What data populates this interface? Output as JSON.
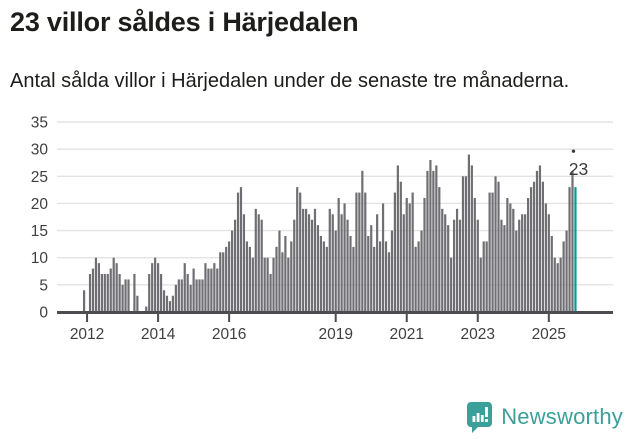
{
  "header": {
    "title": "23 villor såldes i Härjedalen",
    "subtitle": "Antal sålda villor i Härjedalen under de senaste tre månaderna."
  },
  "chart_data": {
    "type": "bar",
    "title": "23 villor såldes i Härjedalen",
    "subtitle": "Antal sålda villor i Härjedalen under de senaste tre månaderna.",
    "xlabel": "",
    "ylabel": "",
    "x_unit": "month",
    "x_start": "2011-12",
    "x_end": "2025-10",
    "ylim": [
      0,
      35
    ],
    "yticks": [
      0,
      5,
      10,
      15,
      20,
      25,
      30,
      35
    ],
    "grid": true,
    "legend": false,
    "xticks": [
      {
        "label": "2012",
        "index": 1
      },
      {
        "label": "2014",
        "index": 25
      },
      {
        "label": "2016",
        "index": 49
      },
      {
        "label": "2019",
        "index": 85
      },
      {
        "label": "2021",
        "index": 109
      },
      {
        "label": "2023",
        "index": 133
      },
      {
        "label": "2025",
        "index": 157
      }
    ],
    "values": [
      4,
      0,
      7,
      8,
      10,
      9,
      7,
      7,
      7,
      8,
      10,
      9,
      7,
      5,
      6,
      6,
      0,
      7,
      3,
      0,
      0,
      1,
      7,
      9,
      10,
      9,
      7,
      4,
      3,
      2,
      3,
      5,
      6,
      6,
      9,
      7,
      5,
      8,
      6,
      6,
      6,
      9,
      8,
      8,
      9,
      8,
      11,
      11,
      12,
      13,
      15,
      17,
      22,
      23,
      18,
      13,
      12,
      10,
      19,
      18,
      17,
      10,
      10,
      7,
      10,
      12,
      15,
      11,
      14,
      10,
      13,
      17,
      23,
      22,
      19,
      19,
      18,
      17,
      19,
      16,
      14,
      13,
      12,
      19,
      18,
      15,
      21,
      18,
      20,
      17,
      14,
      12,
      22,
      22,
      26,
      22,
      14,
      16,
      12,
      18,
      13,
      20,
      13,
      11,
      15,
      22,
      27,
      24,
      18,
      21,
      20,
      22,
      12,
      13,
      15,
      21,
      26,
      28,
      26,
      27,
      23,
      19,
      18,
      16,
      10,
      17,
      19,
      17,
      25,
      25,
      29,
      27,
      21,
      17,
      10,
      13,
      13,
      22,
      22,
      25,
      24,
      17,
      16,
      21,
      20,
      19,
      15,
      17,
      18,
      18,
      21,
      23,
      24,
      26,
      27,
      24,
      20,
      18,
      14,
      10,
      9,
      10,
      13,
      15,
      23,
      26,
      23
    ],
    "highlight_last": true,
    "last_value": 23,
    "annotation": {
      "label": "23"
    }
  },
  "colors": {
    "bar": "#6e6e73",
    "highlight": "#009a94",
    "grid": "#e3e3e3",
    "axis": "#4c4c51",
    "tick_text": "#3f3f3f",
    "title_text": "#1d1d1b",
    "brand": "#3ba09a"
  },
  "footer": {
    "brand": "Newsworthy"
  }
}
